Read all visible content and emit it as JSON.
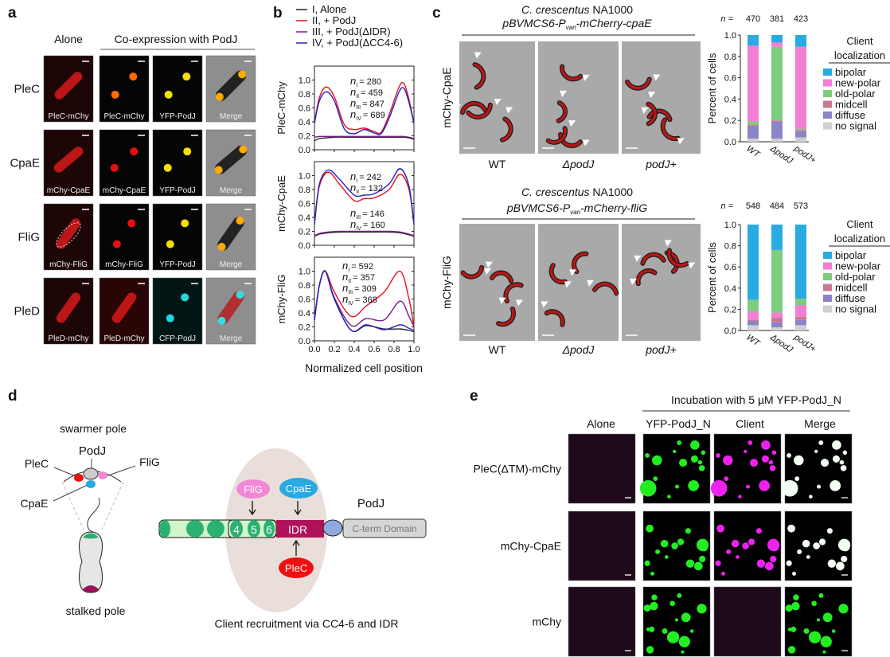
{
  "panel_labels": {
    "a": "a",
    "b": "b",
    "c": "c",
    "d": "d",
    "e": "e"
  },
  "panel_a": {
    "col_alone": "Alone",
    "col_coexp": "Co-expression with PodJ",
    "rows": [
      {
        "label": "PleC",
        "captions": [
          "PleC-mChy",
          "PleC-mChy",
          "YFP-PodJ",
          "Merge"
        ]
      },
      {
        "label": "CpaE",
        "captions": [
          "mChy-CpaE",
          "mChy-CpaE",
          "YFP-PodJ",
          "Merge"
        ]
      },
      {
        "label": "FliG",
        "captions": [
          "mChy-FliG",
          "mChy-FliG",
          "YFP-PodJ",
          "Merge"
        ]
      },
      {
        "label": "PleD",
        "captions": [
          "PleD-mChy",
          "PleD-mChy",
          "CFP-PodJ",
          "Merge"
        ]
      }
    ]
  },
  "panel_b": {
    "legend": [
      "I, Alone",
      "II, + PodJ",
      "III, + PodJ(ΔIDR)",
      "IV, + PodJ(ΔCC4-6)"
    ],
    "xlabel": "Normalized cell position",
    "plots": [
      {
        "ylabel": "PleC-mChy",
        "n": [
          {
            "sub": "I",
            "value": "= 280"
          },
          {
            "sub": "II",
            "value": "= 459"
          },
          {
            "sub": "III",
            "value": "= 847"
          },
          {
            "sub": "IV",
            "value": "= 689"
          }
        ]
      },
      {
        "ylabel": "mChy-CpaE",
        "n": [
          {
            "sub": "I",
            "value": "= 242"
          },
          {
            "sub": "II",
            "value": "= 132"
          },
          {
            "sub": "III",
            "value": "= 146"
          },
          {
            "sub": "IV",
            "value": "= 160"
          }
        ]
      },
      {
        "ylabel": "mChy-FliG",
        "n": [
          {
            "sub": "I",
            "value": "= 592"
          },
          {
            "sub": "II",
            "value": "= 357"
          },
          {
            "sub": "III",
            "value": "= 309"
          },
          {
            "sub": "IV",
            "value": "= 368"
          }
        ]
      }
    ]
  },
  "panel_c": {
    "blocks": [
      {
        "title1_italic": "C. crescentus",
        "title1_rest": " NA1000",
        "title2_pre": "pBVMCS6-P",
        "title2_sub": "van",
        "title2_post": "-mCherry-cpaE",
        "row_label": "mChy-CpaE",
        "columns": [
          "WT",
          "ΔpodJ",
          "podJ+"
        ]
      },
      {
        "title1_italic": "C. crescentus",
        "title1_rest": " NA1000",
        "title2_pre": "pBVMCS6-P",
        "title2_sub": "van",
        "title2_post": "-mCherry-fliG",
        "row_label": "mChy-FliG",
        "columns": [
          "WT",
          "ΔpodJ",
          "podJ+"
        ]
      }
    ]
  },
  "chart_data": [
    {
      "type": "line",
      "ylabel": "PleC-mChy",
      "xlabel": "Normalized cell position",
      "xlim": [
        0,
        1
      ],
      "ylim": [
        0,
        1.1
      ],
      "x": [
        0,
        0.05,
        0.12,
        0.2,
        0.3,
        0.4,
        0.5,
        0.6,
        0.67,
        0.75,
        0.85,
        0.9,
        0.95,
        1.0
      ],
      "series": [
        {
          "name": "I, Alone",
          "color": "#222222",
          "values": [
            0.13,
            0.16,
            0.17,
            0.18,
            0.18,
            0.18,
            0.18,
            0.18,
            0.18,
            0.18,
            0.18,
            0.18,
            0.17,
            0.15
          ]
        },
        {
          "name": "II, + PodJ",
          "color": "#e8101a",
          "values": [
            0.38,
            0.75,
            0.9,
            0.76,
            0.36,
            0.29,
            0.31,
            0.26,
            0.25,
            0.5,
            0.9,
            0.95,
            0.72,
            0.38
          ]
        },
        {
          "name": "III, + PodJ(ΔIDR)",
          "color": "#7a1f8a",
          "values": [
            0.18,
            0.19,
            0.19,
            0.19,
            0.19,
            0.19,
            0.19,
            0.19,
            0.19,
            0.19,
            0.19,
            0.19,
            0.18,
            0.16
          ]
        },
        {
          "name": "IV, + PodJ(ΔCC4-6)",
          "color": "#2222c0",
          "values": [
            0.38,
            0.7,
            0.83,
            0.7,
            0.3,
            0.23,
            0.29,
            0.24,
            0.23,
            0.45,
            0.83,
            0.88,
            0.68,
            0.38
          ]
        }
      ]
    },
    {
      "type": "line",
      "ylabel": "mChy-CpaE",
      "xlim": [
        0,
        1
      ],
      "ylim": [
        0,
        1.1
      ],
      "x": [
        0,
        0.05,
        0.14,
        0.25,
        0.4,
        0.5,
        0.6,
        0.75,
        0.86,
        0.95,
        1.0
      ],
      "series": [
        {
          "name": "I, Alone",
          "color": "#222222",
          "values": [
            0.13,
            0.16,
            0.18,
            0.19,
            0.19,
            0.19,
            0.19,
            0.19,
            0.18,
            0.15,
            0.13
          ]
        },
        {
          "name": "II, + PodJ",
          "color": "#e8101a",
          "values": [
            0.3,
            0.85,
            1.05,
            0.88,
            0.64,
            0.67,
            0.68,
            0.8,
            1.02,
            0.8,
            0.3
          ]
        },
        {
          "name": "III, + PodJ(ΔIDR)",
          "color": "#7a1f8a",
          "values": [
            0.14,
            0.17,
            0.19,
            0.2,
            0.2,
            0.2,
            0.2,
            0.2,
            0.19,
            0.16,
            0.14
          ]
        },
        {
          "name": "IV, + PodJ(ΔCC4-6)",
          "color": "#2222c0",
          "values": [
            0.3,
            0.88,
            1.08,
            0.95,
            0.72,
            0.72,
            0.74,
            0.88,
            1.1,
            0.85,
            0.3
          ]
        }
      ]
    },
    {
      "type": "line",
      "ylabel": "mChy-FliG",
      "xlim": [
        0,
        1
      ],
      "ylim": [
        0,
        1.1
      ],
      "x": [
        0,
        0.05,
        0.11,
        0.2,
        0.37,
        0.52,
        0.7,
        0.86,
        0.95,
        1.0
      ],
      "series": [
        {
          "name": "I, Alone",
          "color": "#222222",
          "values": [
            0.3,
            0.8,
            1.0,
            0.6,
            0.15,
            0.22,
            0.17,
            0.17,
            0.15,
            0.13
          ]
        },
        {
          "name": "II, + PodJ",
          "color": "#e8101a",
          "values": [
            0.3,
            0.8,
            1.0,
            0.7,
            0.35,
            0.5,
            0.7,
            1.0,
            0.6,
            0.2
          ]
        },
        {
          "name": "III, + PodJ(ΔIDR)",
          "color": "#7a1f8a",
          "values": [
            0.3,
            0.8,
            1.0,
            0.62,
            0.22,
            0.32,
            0.3,
            0.57,
            0.35,
            0.2
          ]
        },
        {
          "name": "IV, + PodJ(ΔCC4-6)",
          "color": "#2222c0",
          "values": [
            0.3,
            0.8,
            1.0,
            0.6,
            0.15,
            0.23,
            0.16,
            0.23,
            0.18,
            0.15
          ]
        }
      ]
    },
    {
      "type": "bar",
      "stacked": true,
      "ylabel": "Percent of cells",
      "ylim": [
        0,
        1.0
      ],
      "categories": [
        "WT",
        "ΔpodJ",
        "podJ+"
      ],
      "n_label": "n =",
      "n": [
        "470",
        "381",
        "423"
      ],
      "legend_title1": "Client",
      "legend_title2": "localization",
      "series": [
        {
          "name": "no signal",
          "color": "#cfcfcf",
          "values": [
            0.03,
            0.03,
            0.04
          ]
        },
        {
          "name": "diffuse",
          "color": "#8a84c8",
          "values": [
            0.12,
            0.16,
            0.06
          ]
        },
        {
          "name": "midcell",
          "color": "#c97890",
          "values": [
            0.01,
            0.01,
            0.01
          ]
        },
        {
          "name": "old-polar",
          "color": "#7ccd7c",
          "values": [
            0.03,
            0.69,
            0.01
          ]
        },
        {
          "name": "new-polar",
          "color": "#f27ed6",
          "values": [
            0.71,
            0.04,
            0.77
          ]
        },
        {
          "name": "bipolar",
          "color": "#29abe2",
          "values": [
            0.1,
            0.07,
            0.11
          ]
        }
      ]
    },
    {
      "type": "bar",
      "stacked": true,
      "ylabel": "Percent of cells",
      "ylim": [
        0,
        1.0
      ],
      "categories": [
        "WT",
        "ΔpodJ",
        "podJ+"
      ],
      "n_label": "n =",
      "n": [
        "548",
        "484",
        "573"
      ],
      "legend_title1": "Client",
      "legend_title2": "localization",
      "series": [
        {
          "name": "no signal",
          "color": "#cfcfcf",
          "values": [
            0.05,
            0.03,
            0.05
          ]
        },
        {
          "name": "diffuse",
          "color": "#8a84c8",
          "values": [
            0.04,
            0.05,
            0.05
          ]
        },
        {
          "name": "midcell",
          "color": "#c97890",
          "values": [
            0.01,
            0.04,
            0.03
          ]
        },
        {
          "name": "new-polar",
          "color": "#f27ed6",
          "values": [
            0.08,
            0.05,
            0.11
          ]
        },
        {
          "name": "old-polar",
          "color": "#7ccd7c",
          "values": [
            0.11,
            0.59,
            0.06
          ]
        },
        {
          "name": "bipolar",
          "color": "#29abe2",
          "values": [
            0.71,
            0.24,
            0.7
          ]
        }
      ]
    }
  ],
  "legend_order": [
    "bipolar",
    "new-polar",
    "old-polar",
    "midcell",
    "diffuse",
    "no signal"
  ],
  "panel_d": {
    "swarmer_pole": "swarmer pole",
    "stalked_pole": "stalked pole",
    "podj": "PodJ",
    "plec": "PleC",
    "flig": "FliG",
    "cpae": "CpaE",
    "domains": [
      "4",
      "5",
      "6"
    ],
    "idr": "IDR",
    "cterm": "C-term Domain",
    "podj_label": "PodJ",
    "caption": "Client recruitment via CC4-6 and IDR",
    "colors": {
      "cc": "#2db173",
      "cc_light": "#d3f5cc",
      "idr": "#b0125a",
      "pole_stalked": "#a0105a",
      "plec": "#ee1010",
      "cpae": "#27a9e1",
      "flig": "#f287d8",
      "linker": "#8fa8e0",
      "cterm": "#d6d6d6"
    }
  },
  "panel_e": {
    "header": "Incubation with 5 µM YFP-PodJ_N",
    "columns": [
      "Alone",
      "YFP-PodJ_N",
      "Client",
      "Merge"
    ],
    "rows": [
      "PleC(ΔTM)-mChy",
      "mChy-CpaE",
      "mChy"
    ]
  }
}
